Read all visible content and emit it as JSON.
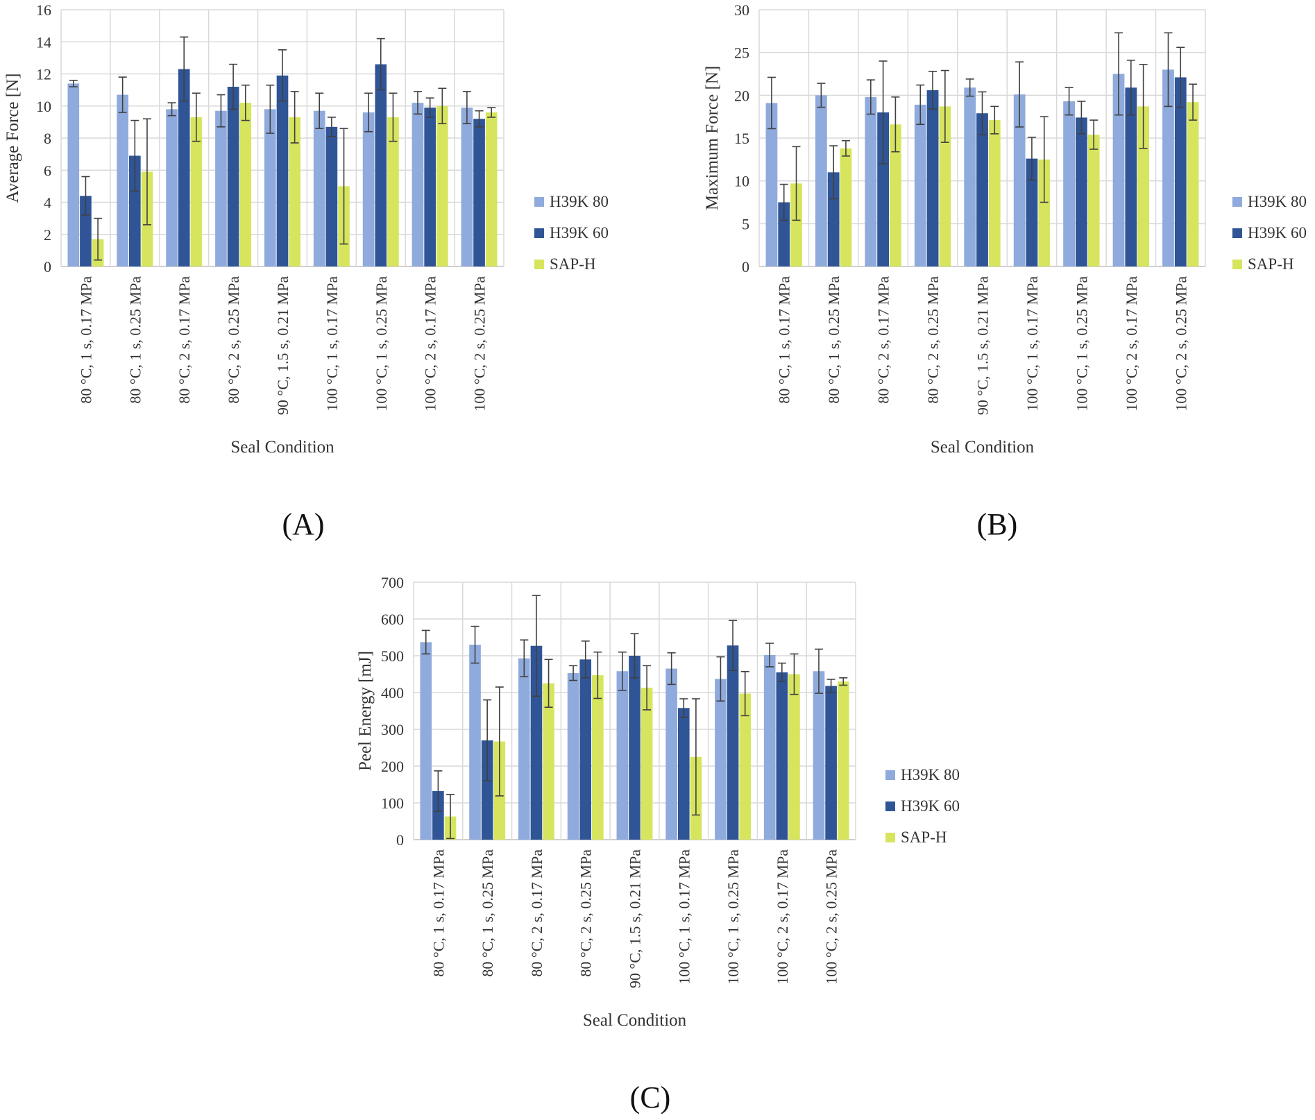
{
  "figure": {
    "panel_labels": [
      "(A)",
      "(B)",
      "(C)"
    ]
  },
  "legend": {
    "series": [
      {
        "name": "H39K 80",
        "color": "#8faadc"
      },
      {
        "name": "H39K 60",
        "color": "#2f5597"
      },
      {
        "name": "SAP-H",
        "color": "#d7e55e"
      }
    ]
  },
  "colors": {
    "grid": "#d9d9d9",
    "axis": "#bfbfbf",
    "error_bar": "#404040",
    "text": "#333333"
  },
  "chart_data": [
    {
      "type": "bar",
      "panel": "(A)",
      "title": "",
      "xlabel": "Seal Condition",
      "ylabel": "Average Force [N]",
      "ylim": [
        0,
        16
      ],
      "yticks": [
        "0",
        "2",
        "4",
        "6",
        "8",
        "10",
        "12",
        "14",
        "16"
      ],
      "grid": true,
      "legend_position": "right",
      "categories": [
        "80 °C, 1 s, 0.17 MPa",
        "80 °C, 1 s, 0.25 MPa",
        "80 °C, 2 s, 0.17 MPa",
        "80 °C, 2 s, 0.25 MPa",
        "90 °C, 1.5 s, 0.21 MPa",
        "100 °C, 1 s, 0.17 MPa",
        "100 °C, 1 s, 0.25 MPa",
        "100 °C, 2 s, 0.17 MPa",
        "100 °C, 2 s, 0.25 MPa"
      ],
      "series": [
        {
          "name": "H39K 80",
          "values": [
            11.4,
            10.7,
            9.8,
            9.7,
            9.8,
            9.7,
            9.6,
            10.2,
            9.9
          ],
          "errors": [
            0.2,
            1.1,
            0.4,
            1.0,
            1.5,
            1.1,
            1.2,
            0.7,
            1.0
          ]
        },
        {
          "name": "H39K 60",
          "values": [
            4.4,
            6.9,
            12.3,
            11.2,
            11.9,
            8.7,
            12.6,
            9.9,
            9.2
          ],
          "errors": [
            1.2,
            2.2,
            2.0,
            1.4,
            1.6,
            0.6,
            1.6,
            0.6,
            0.5
          ]
        },
        {
          "name": "SAP-H",
          "values": [
            1.7,
            5.9,
            9.3,
            10.2,
            9.3,
            5.0,
            9.3,
            10.0,
            9.6
          ],
          "errors": [
            1.3,
            3.3,
            1.5,
            1.1,
            1.6,
            3.6,
            1.5,
            1.1,
            0.3
          ]
        }
      ]
    },
    {
      "type": "bar",
      "panel": "(B)",
      "title": "",
      "xlabel": "Seal Condition",
      "ylabel": "Maximum Force [N]",
      "ylim": [
        0,
        30
      ],
      "yticks": [
        "0",
        "5",
        "10",
        "15",
        "20",
        "25",
        "30"
      ],
      "grid": true,
      "legend_position": "right",
      "categories": [
        "80 °C, 1 s, 0.17 MPa",
        "80 °C, 1 s, 0.25 MPa",
        "80 °C, 2 s, 0.17 MPa",
        "80 °C, 2 s, 0.25 MPa",
        "90 °C, 1.5 s, 0.21 MPa",
        "100 °C, 1 s, 0.17 MPa",
        "100 °C, 1 s, 0.25 MPa",
        "100 °C, 2 s, 0.17 MPa",
        "100 °C, 2 s, 0.25 MPa"
      ],
      "series": [
        {
          "name": "H39K 80",
          "values": [
            19.1,
            20.0,
            19.8,
            18.9,
            20.9,
            20.1,
            19.3,
            22.5,
            23.0
          ],
          "errors": [
            3.0,
            1.4,
            2.0,
            2.3,
            1.0,
            3.8,
            1.6,
            4.8,
            4.3
          ]
        },
        {
          "name": "H39K 60",
          "values": [
            7.5,
            11.0,
            18.0,
            20.6,
            17.9,
            12.6,
            17.4,
            20.9,
            22.1
          ],
          "errors": [
            2.1,
            3.1,
            6.0,
            2.2,
            2.5,
            2.5,
            1.9,
            3.2,
            3.5
          ]
        },
        {
          "name": "SAP-H",
          "values": [
            9.7,
            13.8,
            16.6,
            18.7,
            17.1,
            12.5,
            15.4,
            18.7,
            19.2
          ],
          "errors": [
            4.3,
            0.9,
            3.2,
            4.2,
            1.6,
            5.0,
            1.7,
            4.9,
            2.1
          ]
        }
      ]
    },
    {
      "type": "bar",
      "panel": "(C)",
      "title": "",
      "xlabel": "Seal Condition",
      "ylabel": "Peel Energy [mJ]",
      "ylim": [
        0,
        700
      ],
      "yticks": [
        "0",
        "100",
        "200",
        "300",
        "400",
        "500",
        "600",
        "700"
      ],
      "grid": true,
      "legend_position": "right",
      "categories": [
        "80 °C, 1 s, 0.17 MPa",
        "80 °C, 1 s, 0.25 MPa",
        "80 °C, 2 s, 0.17 MPa",
        "80 °C, 2 s, 0.25 MPa",
        "90 °C, 1.5 s, 0.21 MPa",
        "100 °C, 1 s, 0.17 MPa",
        "100 °C, 1 s, 0.25 MPa",
        "100 °C, 2 s, 0.17 MPa",
        "100 °C, 2 s, 0.25 MPa"
      ],
      "series": [
        {
          "name": "H39K 80",
          "values": [
            537,
            530,
            493,
            453,
            458,
            465,
            437,
            502,
            458
          ],
          "errors": [
            32,
            50,
            50,
            20,
            52,
            43,
            60,
            32,
            60
          ]
        },
        {
          "name": "H39K 60",
          "values": [
            132,
            270,
            527,
            490,
            500,
            358,
            528,
            455,
            418
          ],
          "errors": [
            55,
            110,
            137,
            50,
            60,
            25,
            68,
            25,
            18
          ]
        },
        {
          "name": "SAP-H",
          "values": [
            63,
            267,
            425,
            447,
            413,
            225,
            397,
            450,
            430
          ],
          "errors": [
            60,
            148,
            65,
            63,
            60,
            158,
            60,
            55,
            10
          ]
        }
      ]
    }
  ]
}
